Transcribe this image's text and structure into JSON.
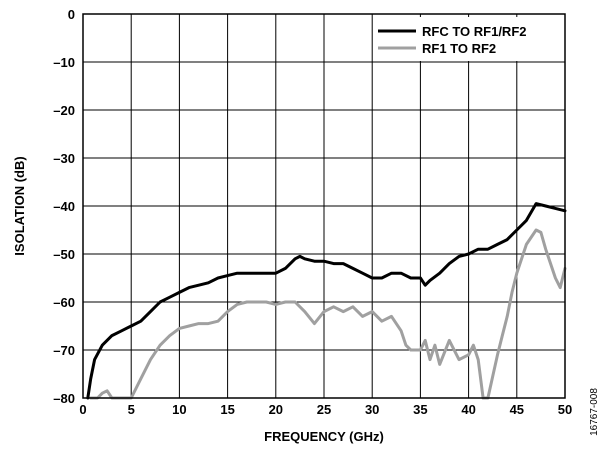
{
  "chart_data": {
    "type": "line",
    "xlabel": "FREQUENCY (GHz)",
    "ylabel": "ISOLATION (dB)",
    "xlim": [
      0,
      50
    ],
    "ylim": [
      -80,
      0
    ],
    "xticks": [
      "0",
      "5",
      "10",
      "15",
      "20",
      "25",
      "30",
      "35",
      "40",
      "45",
      "50"
    ],
    "yticks": [
      "0",
      "–10",
      "–20",
      "–30",
      "–40",
      "–50",
      "–60",
      "–70",
      "–80"
    ],
    "grid": true,
    "legend_position": "top-right",
    "figure_id": "16767-008",
    "series": [
      {
        "name": "RFC TO RF1/RF2",
        "color": "#000000",
        "points": [
          [
            0.5,
            -80
          ],
          [
            0.8,
            -76
          ],
          [
            1.2,
            -72
          ],
          [
            2,
            -69
          ],
          [
            3,
            -67
          ],
          [
            4,
            -66
          ],
          [
            5,
            -65
          ],
          [
            6,
            -64
          ],
          [
            7,
            -62
          ],
          [
            8,
            -60
          ],
          [
            9,
            -59
          ],
          [
            10,
            -58
          ],
          [
            11,
            -57
          ],
          [
            12,
            -56.5
          ],
          [
            13,
            -56
          ],
          [
            14,
            -55
          ],
          [
            15,
            -54.5
          ],
          [
            16,
            -54
          ],
          [
            17,
            -54
          ],
          [
            18,
            -54
          ],
          [
            19,
            -54
          ],
          [
            20,
            -54
          ],
          [
            21,
            -53
          ],
          [
            22,
            -51
          ],
          [
            22.5,
            -50.5
          ],
          [
            23,
            -51
          ],
          [
            24,
            -51.5
          ],
          [
            25,
            -51.5
          ],
          [
            26,
            -52
          ],
          [
            27,
            -52
          ],
          [
            28,
            -53
          ],
          [
            29,
            -54
          ],
          [
            30,
            -55
          ],
          [
            31,
            -55
          ],
          [
            32,
            -54
          ],
          [
            33,
            -54
          ],
          [
            34,
            -55
          ],
          [
            35,
            -55
          ],
          [
            35.5,
            -56.5
          ],
          [
            36,
            -55.5
          ],
          [
            37,
            -54
          ],
          [
            38,
            -52
          ],
          [
            39,
            -50.5
          ],
          [
            40,
            -50
          ],
          [
            41,
            -49
          ],
          [
            42,
            -49
          ],
          [
            43,
            -48
          ],
          [
            44,
            -47
          ],
          [
            45,
            -45
          ],
          [
            46,
            -43
          ],
          [
            47,
            -39.5
          ],
          [
            48,
            -40
          ],
          [
            49,
            -40.5
          ],
          [
            50,
            -41
          ]
        ]
      },
      {
        "name": "RF1 TO RF2",
        "color": "#a0a0a0",
        "points": [
          [
            0.8,
            -80
          ],
          [
            1.5,
            -80
          ],
          [
            2,
            -79
          ],
          [
            2.5,
            -78.5
          ],
          [
            3,
            -80
          ],
          [
            5,
            -80
          ],
          [
            6,
            -76
          ],
          [
            7,
            -72
          ],
          [
            8,
            -69
          ],
          [
            9,
            -67
          ],
          [
            10,
            -65.5
          ],
          [
            11,
            -65
          ],
          [
            12,
            -64.5
          ],
          [
            13,
            -64.5
          ],
          [
            14,
            -64
          ],
          [
            15,
            -62
          ],
          [
            16,
            -60.5
          ],
          [
            17,
            -60
          ],
          [
            18,
            -60
          ],
          [
            19,
            -60
          ],
          [
            20,
            -60.5
          ],
          [
            21,
            -60
          ],
          [
            22,
            -60
          ],
          [
            23,
            -62
          ],
          [
            24,
            -64.5
          ],
          [
            25,
            -62
          ],
          [
            26,
            -61
          ],
          [
            27,
            -62
          ],
          [
            28,
            -61
          ],
          [
            29,
            -63
          ],
          [
            30,
            -62
          ],
          [
            31,
            -64
          ],
          [
            32,
            -63
          ],
          [
            33,
            -66
          ],
          [
            33.5,
            -69
          ],
          [
            34,
            -70
          ],
          [
            35,
            -70
          ],
          [
            35.5,
            -68
          ],
          [
            36,
            -72
          ],
          [
            36.5,
            -69
          ],
          [
            37,
            -73
          ],
          [
            38,
            -68
          ],
          [
            39,
            -72
          ],
          [
            40,
            -71
          ],
          [
            40.5,
            -69
          ],
          [
            41,
            -72
          ],
          [
            41.5,
            -80
          ],
          [
            42,
            -80
          ],
          [
            43,
            -71
          ],
          [
            43.5,
            -67
          ],
          [
            44,
            -63
          ],
          [
            44.5,
            -58
          ],
          [
            45,
            -54
          ],
          [
            46,
            -48
          ],
          [
            47,
            -45
          ],
          [
            47.5,
            -45.5
          ],
          [
            48,
            -49
          ],
          [
            49,
            -55
          ],
          [
            49.5,
            -57
          ],
          [
            50,
            -53
          ]
        ]
      }
    ]
  }
}
